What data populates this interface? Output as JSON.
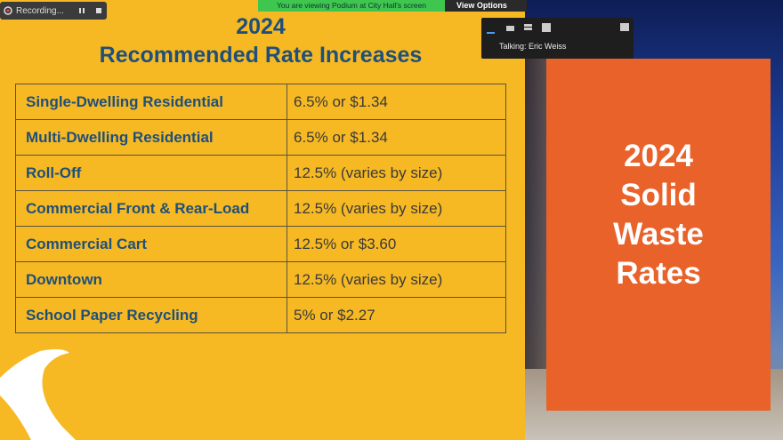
{
  "zoom": {
    "recording": "Recording...",
    "banner": "You are viewing Podium at City Hall's screen",
    "view_options": "View Options",
    "talking": "Talking: Eric Weiss"
  },
  "slide": {
    "title_year": "2024",
    "title": "Recommended Rate Increases",
    "table": {
      "rows": [
        [
          "Single-Dwelling Residential",
          "6.5% or $1.34"
        ],
        [
          "Multi-Dwelling Residential",
          "6.5% or $1.34"
        ],
        [
          "Roll-Off",
          "12.5% (varies by size)"
        ],
        [
          "Commercial Front & Rear-Load",
          "12.5% (varies by size)"
        ],
        [
          "Commercial Cart",
          "12.5% or $3.60"
        ],
        [
          "Downtown",
          "12.5% (varies by size)"
        ],
        [
          "School Paper Recycling",
          "5% or $2.27"
        ]
      ]
    }
  },
  "side_panel": {
    "lines": [
      "2024",
      "Solid",
      "Waste",
      "Rates"
    ]
  }
}
